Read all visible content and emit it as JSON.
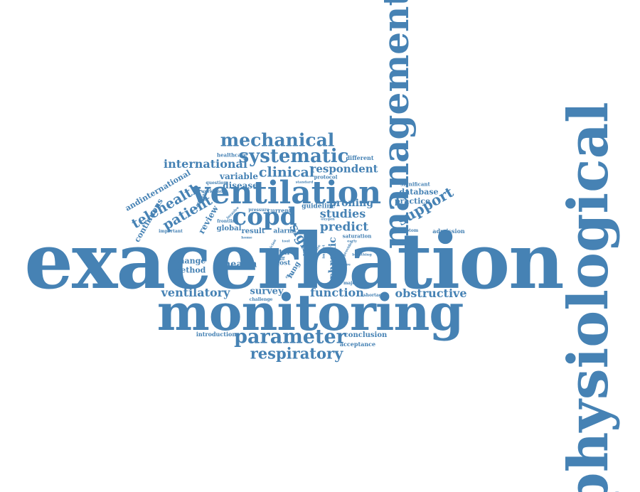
{
  "colors": {
    "primary": "#4682b4",
    "light": "#6a9bc8",
    "background": "#ffffff"
  },
  "words": {
    "exacerbation": "exacerbation",
    "monitoring": "monitoring",
    "physiological": "physiological",
    "management": "management",
    "ventilation": "ventilation",
    "copd": "copd",
    "mechanical": "mechanical",
    "systematic": "systematic",
    "parameter": "parameter",
    "respiratory": "respiratory",
    "international": "international",
    "clinical": "clinical",
    "respondent": "respondent",
    "telehealth": "telehealth",
    "patient": "patient",
    "support": "support",
    "studies": "studies",
    "predict": "predict",
    "proning": "proning",
    "obstructive": "obstructive",
    "function": "function",
    "ventilatory": "ventilatory",
    "health": "health",
    "survey": "survey",
    "sign": "sign",
    "chronic": "chronic",
    "disease": "disease",
    "variable": "variable",
    "review": "review",
    "database": "database",
    "practice": "practice",
    "andinternational": "andinternational",
    "continuous": "continuous",
    "change": "change",
    "method": "method",
    "conclusion": "conclusion",
    "acceptance": "acceptance",
    "introduction": "introduction",
    "global": "global",
    "result": "result",
    "alarm": "alarm",
    "guideline": "guideline",
    "vital": "vital",
    "most": "most",
    "lung": "lung",
    "current": "current",
    "healthcare": "healthcare",
    "different": "different",
    "protocol": "protocol",
    "significant": "significant",
    "admission": "admission",
    "symptom": "symptom",
    "saturation": "saturation",
    "important": "important",
    "frontline": "frontline",
    "question": "question",
    "workload": "workload",
    "national": "national",
    "invasive": "invasive",
    "pressure": "pressure",
    "standard": "standard",
    "oxygen": "oxygen",
    "tele": "tele",
    "staff": "staff",
    "challenge": "challenge",
    "majority": "majority",
    "shortage": "shortage",
    "provider": "provider",
    "hospital": "hospital",
    "intensive": "intensive",
    "number": "number",
    "impact": "impact",
    "breathing": "breathing",
    "severe": "severe",
    "clinician": "clinician",
    "home": "home",
    "ratio": "ratio",
    "reduce": "reduce",
    "early": "early",
    "tool": "tool",
    "care": "care"
  }
}
